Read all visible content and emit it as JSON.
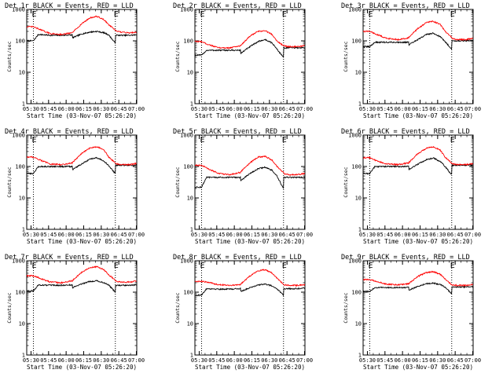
{
  "figure": {
    "colors": {
      "events": "#000000",
      "lld": "#ff0000",
      "axes": "#000000",
      "background": "#ffffff"
    },
    "x_tick_labels": [
      "05:30",
      "05:45",
      "06:00",
      "06:15",
      "06:30",
      "06:45",
      "07:00"
    ],
    "xlabel": "Start Time (03-Nov-07 05:26:20)",
    "ylabel": "Counts/sec",
    "y_tick_labels": [
      "1",
      "10",
      "100",
      "1000"
    ],
    "marker_label": "E",
    "markers_minutes": [
      5.7,
      75.7
    ],
    "axis_range_minutes": [
      0,
      94
    ],
    "ylim": [
      1,
      1000
    ]
  },
  "chart_data": [
    {
      "type": "line",
      "title": "Det 1r BLACK = Events, RED = LLD",
      "yscale": "log",
      "x_minutes": [
        0,
        5.7,
        10,
        20,
        30,
        39,
        39.1,
        47,
        54,
        60,
        66,
        70,
        75.6,
        75.7,
        80,
        88,
        94
      ],
      "series": [
        {
          "values": [
            100,
            100,
            160,
            150,
            150,
            155,
            125,
            165,
            190,
            200,
            180,
            155,
            85,
            150,
            150,
            150,
            155
          ]
        },
        {
          "values": [
            280,
            280,
            240,
            170,
            160,
            180,
            185,
            350,
            540,
            600,
            470,
            330,
            220,
            210,
            190,
            180,
            190
          ]
        }
      ]
    },
    {
      "type": "line",
      "title": "Det 2r BLACK = Events, RED = LLD",
      "yscale": "log",
      "x_minutes": [
        0,
        5.7,
        10,
        20,
        30,
        39,
        39.1,
        47,
        54,
        60,
        66,
        70,
        75.6,
        75.7,
        80,
        88,
        94
      ],
      "series": [
        {
          "values": [
            35,
            35,
            50,
            50,
            50,
            50,
            40,
            65,
            95,
            110,
            85,
            55,
            30,
            60,
            60,
            60,
            60
          ]
        },
        {
          "values": [
            95,
            95,
            80,
            60,
            60,
            70,
            72,
            140,
            200,
            210,
            160,
            100,
            70,
            70,
            65,
            65,
            70
          ]
        }
      ]
    },
    {
      "type": "line",
      "title": "Det 3r BLACK = Events, RED = LLD",
      "yscale": "log",
      "x_minutes": [
        0,
        5.7,
        10,
        20,
        30,
        39,
        39.1,
        47,
        54,
        60,
        66,
        70,
        75.6,
        75.7,
        80,
        88,
        94
      ],
      "series": [
        {
          "values": [
            65,
            65,
            90,
            90,
            90,
            90,
            75,
            110,
            160,
            175,
            135,
            95,
            55,
            100,
            100,
            100,
            105
          ]
        },
        {
          "values": [
            200,
            200,
            170,
            120,
            110,
            125,
            130,
            250,
            380,
            420,
            330,
            200,
            130,
            120,
            110,
            110,
            120
          ]
        }
      ]
    },
    {
      "type": "line",
      "title": "Det 4r BLACK = Events, RED = LLD",
      "yscale": "log",
      "x_minutes": [
        0,
        5.7,
        10,
        20,
        30,
        39,
        39.1,
        47,
        54,
        60,
        66,
        70,
        75.6,
        75.7,
        80,
        88,
        94
      ],
      "series": [
        {
          "values": [
            60,
            60,
            100,
            100,
            100,
            100,
            80,
            120,
            170,
            190,
            150,
            105,
            60,
            110,
            110,
            110,
            110
          ]
        },
        {
          "values": [
            200,
            200,
            170,
            120,
            115,
            130,
            135,
            260,
            390,
            430,
            340,
            200,
            130,
            125,
            115,
            115,
            125
          ]
        }
      ]
    },
    {
      "type": "line",
      "title": "Det 5r BLACK = Events, RED = LLD",
      "yscale": "log",
      "x_minutes": [
        0,
        5.7,
        10,
        20,
        30,
        39,
        39.1,
        47,
        54,
        60,
        66,
        70,
        75.6,
        75.7,
        80,
        88,
        94
      ],
      "series": [
        {
          "values": [
            22,
            22,
            45,
            45,
            45,
            45,
            35,
            60,
            85,
            95,
            75,
            50,
            20,
            45,
            45,
            45,
            45
          ]
        },
        {
          "values": [
            110,
            110,
            90,
            60,
            55,
            65,
            68,
            130,
            200,
            210,
            160,
            100,
            65,
            60,
            55,
            55,
            60
          ]
        }
      ]
    },
    {
      "type": "line",
      "title": "Det 6r BLACK = Events, RED = LLD",
      "yscale": "log",
      "x_minutes": [
        0,
        5.7,
        10,
        20,
        30,
        39,
        39.1,
        47,
        54,
        60,
        66,
        70,
        75.6,
        75.7,
        80,
        88,
        94
      ],
      "series": [
        {
          "values": [
            60,
            60,
            100,
            100,
            100,
            100,
            80,
            120,
            165,
            185,
            145,
            100,
            55,
            110,
            110,
            110,
            110
          ]
        },
        {
          "values": [
            190,
            190,
            160,
            120,
            115,
            130,
            135,
            260,
            380,
            420,
            330,
            200,
            130,
            125,
            115,
            115,
            125
          ]
        }
      ]
    },
    {
      "type": "line",
      "title": "Det 7r BLACK = Events, RED = LLD",
      "yscale": "log",
      "x_minutes": [
        0,
        5.7,
        10,
        20,
        30,
        39,
        39.1,
        47,
        54,
        60,
        66,
        70,
        75.6,
        75.7,
        80,
        88,
        94
      ],
      "series": [
        {
          "values": [
            110,
            110,
            170,
            165,
            165,
            170,
            140,
            185,
            220,
            230,
            200,
            170,
            100,
            165,
            165,
            165,
            170
          ]
        },
        {
          "values": [
            330,
            330,
            290,
            210,
            200,
            230,
            235,
            430,
            600,
            650,
            520,
            360,
            240,
            225,
            210,
            210,
            230
          ]
        }
      ]
    },
    {
      "type": "line",
      "title": "Det 8r BLACK = Events, RED = LLD",
      "yscale": "log",
      "x_minutes": [
        0,
        5.7,
        10,
        20,
        30,
        39,
        39.1,
        47,
        54,
        60,
        66,
        70,
        75.6,
        75.7,
        80,
        88,
        94
      ],
      "series": [
        {
          "values": [
            80,
            80,
            130,
            125,
            125,
            130,
            105,
            140,
            170,
            180,
            160,
            130,
            80,
            130,
            130,
            130,
            135
          ]
        },
        {
          "values": [
            220,
            220,
            210,
            175,
            165,
            175,
            180,
            330,
            480,
            520,
            410,
            280,
            180,
            175,
            165,
            165,
            175
          ]
        }
      ]
    },
    {
      "type": "line",
      "title": "Det 9r BLACK = Events, RED = LLD",
      "yscale": "log",
      "x_minutes": [
        0,
        5.7,
        10,
        20,
        30,
        39,
        39.1,
        47,
        54,
        60,
        66,
        70,
        75.6,
        75.7,
        80,
        88,
        94
      ],
      "series": [
        {
          "values": [
            105,
            105,
            140,
            140,
            140,
            140,
            115,
            155,
            185,
            195,
            175,
            145,
            90,
            145,
            145,
            145,
            150
          ]
        },
        {
          "values": [
            250,
            250,
            230,
            180,
            170,
            185,
            190,
            320,
            420,
            450,
            370,
            260,
            175,
            170,
            165,
            165,
            175
          ]
        }
      ]
    }
  ]
}
